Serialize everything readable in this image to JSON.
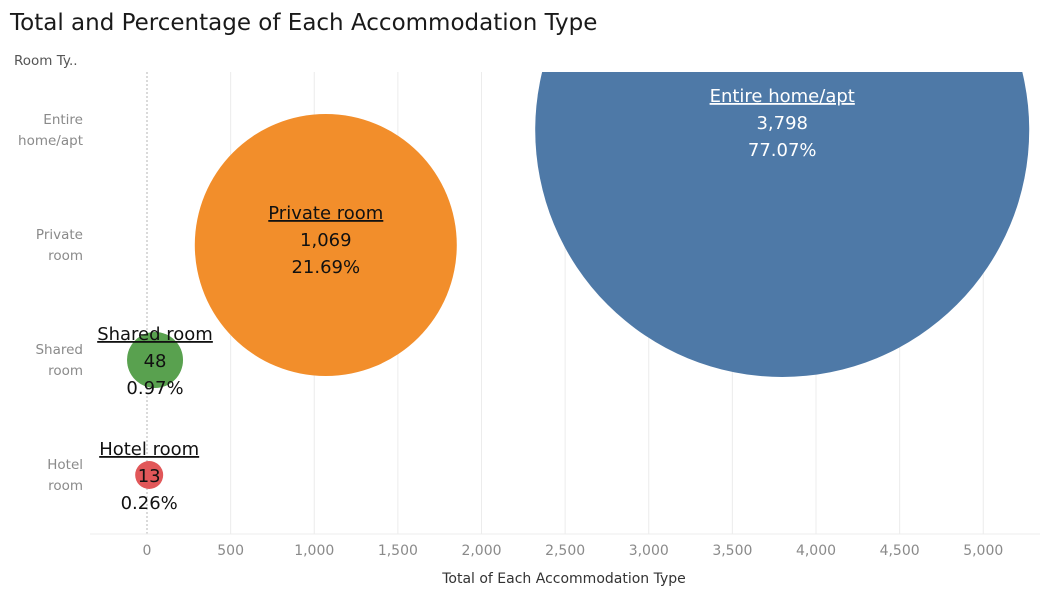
{
  "title": "Total and Percentage of Each Accommodation Type",
  "colors": {
    "entire": "#4e79a7",
    "private": "#f28e2b",
    "shared": "#59a14f",
    "hotel": "#e15759",
    "grid": "#ececec",
    "zero_line": "#b5b5b5"
  },
  "chart_data": {
    "type": "scatter",
    "encoding": "bubble",
    "title": "Total and Percentage of Each Accommodation Type",
    "xlabel": "Total of Each Accommodation Type",
    "ylabel": "Room Ty..",
    "xlim": [
      -350,
      5300
    ],
    "xticks": [
      0,
      500,
      1000,
      1500,
      2000,
      2500,
      3000,
      3500,
      4000,
      4500,
      5000
    ],
    "xtick_labels": [
      "0",
      "500",
      "1,000",
      "1,500",
      "2,000",
      "2,500",
      "3,000",
      "3,500",
      "4,000",
      "4,500",
      "5,000"
    ],
    "grid": true,
    "categories": [
      "Entire home/apt",
      "Private room",
      "Shared room",
      "Hotel room"
    ],
    "category_labels": [
      [
        "Entire",
        "home/apt"
      ],
      [
        "Private",
        "room"
      ],
      [
        "Shared",
        "room"
      ],
      [
        "Hotel",
        "room"
      ]
    ],
    "series": [
      {
        "name": "Entire home/apt",
        "x": 3798,
        "value_label": "3,798",
        "percent": 77.07,
        "percent_label": "77.07%",
        "color_key": "entire"
      },
      {
        "name": "Private room",
        "x": 1069,
        "value_label": "1,069",
        "percent": 21.69,
        "percent_label": "21.69%",
        "color_key": "private"
      },
      {
        "name": "Shared room",
        "x": 48,
        "value_label": "48",
        "percent": 0.97,
        "percent_label": "0.97%",
        "color_key": "shared"
      },
      {
        "name": "Hotel room",
        "x": 13,
        "value_label": "13",
        "percent": 0.26,
        "percent_label": "0.26%",
        "color_key": "hotel"
      }
    ]
  }
}
